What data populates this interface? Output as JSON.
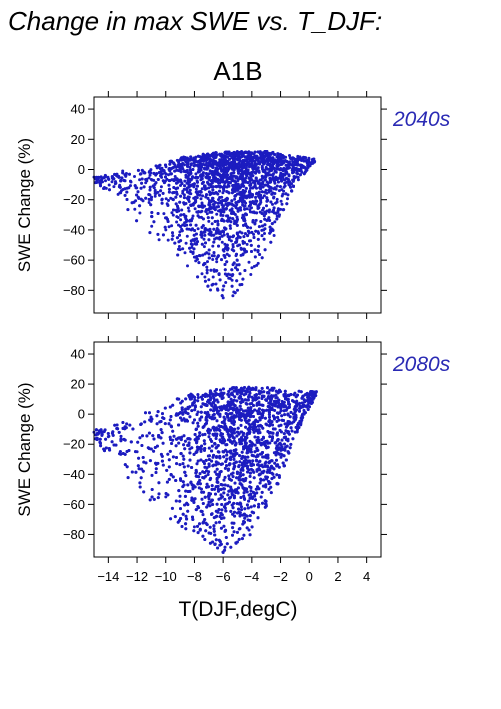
{
  "figure": {
    "title": "Change in max SWE vs. T_DJF:",
    "scenario": "A1B",
    "point_color": "#1c1cc0",
    "period_color": "#2a2ab4"
  },
  "chart_data": [
    {
      "type": "scatter",
      "period_label": "2040s",
      "xlabel": "",
      "ylabel": "SWE Change (%)",
      "xlim": [
        -15,
        5
      ],
      "ylim": [
        -95,
        48
      ],
      "xticks": [
        -14,
        -12,
        -10,
        -8,
        -6,
        -4,
        -2,
        0,
        2,
        4
      ],
      "yticks": [
        40,
        20,
        0,
        -20,
        -40,
        -60,
        -80
      ],
      "ytick_labels": [
        "40",
        "20",
        "0",
        "−20",
        "−40",
        "−60",
        "−80"
      ],
      "show_x_tick_labels": false,
      "point_count": 3200,
      "sample_points": [
        [
          -15.0,
          -5
        ],
        [
          -13.5,
          -8
        ],
        [
          -13,
          -1
        ],
        [
          -11,
          -20
        ],
        [
          -10,
          -40
        ],
        [
          -8,
          -58
        ],
        [
          -6,
          -85
        ],
        [
          -5,
          -80
        ],
        [
          -4,
          -65
        ],
        [
          -2,
          10
        ],
        [
          -1,
          5
        ],
        [
          0.3,
          6
        ]
      ],
      "cloud": {
        "x_range": [
          -15.0,
          0.4
        ],
        "x_peak": -5.5,
        "upper_edge": [
          [
            -15,
            -5
          ],
          [
            -13,
            -2
          ],
          [
            -11,
            2
          ],
          [
            -9,
            8
          ],
          [
            -7,
            11
          ],
          [
            -5,
            12
          ],
          [
            -3,
            12
          ],
          [
            -1.5,
            10
          ],
          [
            0.4,
            7
          ]
        ],
        "lower_edge": [
          [
            -15,
            -8
          ],
          [
            -13,
            -25
          ],
          [
            -11,
            -45
          ],
          [
            -9,
            -60
          ],
          [
            -7,
            -80
          ],
          [
            -5.5,
            -86
          ],
          [
            -4,
            -72
          ],
          [
            -2.5,
            -45
          ],
          [
            -1,
            -10
          ],
          [
            0.4,
            5
          ]
        ],
        "center": [
          [
            -15,
            -6
          ],
          [
            -12,
            -12
          ],
          [
            -9,
            -14
          ],
          [
            -6,
            -14
          ],
          [
            -3,
            -8
          ],
          [
            -1,
            -2
          ],
          [
            0.4,
            6
          ]
        ]
      }
    },
    {
      "type": "scatter",
      "period_label": "2080s",
      "xlabel": "T(DJF,degC)",
      "ylabel": "SWE Change (%)",
      "xlim": [
        -15,
        5
      ],
      "ylim": [
        -95,
        48
      ],
      "xticks": [
        -14,
        -12,
        -10,
        -8,
        -6,
        -4,
        -2,
        0,
        2,
        4
      ],
      "xtick_labels": [
        "−14",
        "−12",
        "−10",
        "−8",
        "−6",
        "−4",
        "−2",
        "0",
        "2",
        "4"
      ],
      "yticks": [
        40,
        20,
        0,
        -20,
        -40,
        -60,
        -80
      ],
      "ytick_labels": [
        "40",
        "20",
        "0",
        "−20",
        "−40",
        "−60",
        "−80"
      ],
      "show_x_tick_labels": true,
      "point_count": 3600,
      "sample_points": [
        [
          -15.0,
          -12
        ],
        [
          -14,
          -15
        ],
        [
          -12,
          -25
        ],
        [
          -10,
          -55
        ],
        [
          -8,
          -75
        ],
        [
          -6,
          -92
        ],
        [
          -5,
          -85
        ],
        [
          -3,
          -60
        ],
        [
          -2,
          15
        ],
        [
          -1,
          14
        ],
        [
          0.5,
          15
        ]
      ],
      "cloud": {
        "x_range": [
          -15.0,
          0.5
        ],
        "x_peak": -5.0,
        "upper_edge": [
          [
            -15,
            -10
          ],
          [
            -13,
            -5
          ],
          [
            -11,
            5
          ],
          [
            -9,
            12
          ],
          [
            -7,
            16
          ],
          [
            -5,
            18
          ],
          [
            -3,
            18
          ],
          [
            -1.5,
            16
          ],
          [
            0.5,
            15
          ]
        ],
        "lower_edge": [
          [
            -15,
            -16
          ],
          [
            -13,
            -40
          ],
          [
            -11,
            -60
          ],
          [
            -9,
            -75
          ],
          [
            -7,
            -86
          ],
          [
            -6,
            -92
          ],
          [
            -4,
            -80
          ],
          [
            -2.5,
            -55
          ],
          [
            -1,
            -15
          ],
          [
            0.5,
            13
          ]
        ],
        "center": [
          [
            -15,
            -13
          ],
          [
            -12,
            -28
          ],
          [
            -9,
            -30
          ],
          [
            -6,
            -30
          ],
          [
            -3,
            -22
          ],
          [
            -1,
            -5
          ],
          [
            0.5,
            14
          ]
        ]
      }
    }
  ]
}
